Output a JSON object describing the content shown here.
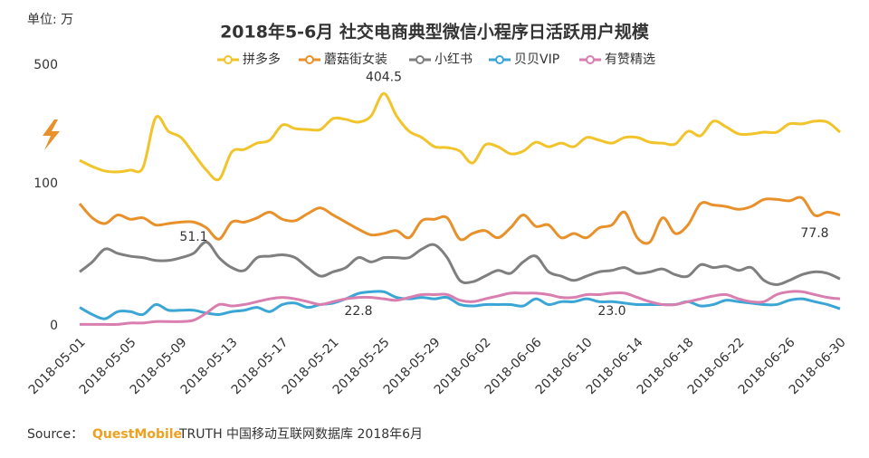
{
  "chart_data": {
    "type": "line",
    "title": "2018年5-6月 社交电商典型微信小程序日活跃用户规模",
    "unit_label": "单位: 万",
    "categories": [
      "2018-05-01",
      null,
      null,
      null,
      "2018-05-05",
      null,
      null,
      null,
      "2018-05-09",
      null,
      null,
      null,
      "2018-05-13",
      null,
      null,
      null,
      "2018-05-17",
      null,
      null,
      null,
      "2018-05-21",
      null,
      null,
      null,
      "2018-05-25",
      null,
      null,
      null,
      "2018-05-29",
      null,
      null,
      null,
      "2018-06-02",
      null,
      null,
      null,
      "2018-06-06",
      null,
      null,
      null,
      "2018-06-10",
      null,
      null,
      null,
      "2018-06-14",
      null,
      null,
      null,
      "2018-06-18",
      null,
      null,
      null,
      "2018-06-22",
      null,
      null,
      null,
      "2018-06-26",
      null,
      null,
      null,
      "2018-06-30"
    ],
    "ylim": [
      0,
      500
    ],
    "yticks": [
      0,
      100,
      500
    ],
    "grid": false,
    "legend": "top",
    "series": [
      {
        "name": "拼多多",
        "color": "#f2c42c",
        "values": [
          179,
          158,
          143,
          140,
          146,
          155,
          323,
          277,
          256,
          201,
          146,
          115,
          207,
          216,
          237,
          247,
          298,
          286,
          283,
          283,
          320,
          317,
          308,
          329,
          404.5,
          329,
          277,
          256,
          225,
          222,
          210,
          170,
          231,
          225,
          201,
          210,
          240,
          225,
          237,
          225,
          256,
          247,
          237,
          256,
          256,
          240,
          237,
          234,
          277,
          262,
          311,
          292,
          268,
          268,
          274,
          274,
          302,
          302,
          311,
          308,
          274
        ],
        "value_labels": [
          null,
          null,
          null,
          null,
          null,
          null,
          null,
          null,
          null,
          null,
          null,
          null,
          null,
          null,
          null,
          null,
          null,
          null,
          null,
          null,
          null,
          null,
          null,
          null,
          "404.5",
          null,
          null,
          null,
          null,
          null,
          null,
          null,
          null,
          null,
          null,
          null,
          null,
          null,
          null,
          null,
          null,
          null,
          null,
          null,
          null,
          null,
          null,
          null,
          null,
          null,
          null,
          null,
          null,
          null,
          null,
          null,
          null,
          null,
          null,
          null,
          null
        ]
      },
      {
        "name": "蘑菇街女装",
        "color": "#e8902a",
        "values": [
          86,
          76,
          72,
          78,
          75,
          76,
          71,
          72,
          73,
          73,
          69,
          61,
          73,
          73,
          76,
          80,
          75,
          74,
          79,
          83,
          78,
          73,
          68,
          64,
          65,
          67,
          62,
          74,
          75,
          76,
          61,
          65,
          67,
          62,
          69,
          78,
          70,
          71,
          62,
          65,
          62,
          69,
          71,
          80,
          62,
          59,
          76,
          65,
          71,
          86,
          85,
          84,
          82,
          84,
          89,
          89,
          88,
          90,
          77.8,
          80,
          78
        ],
        "value_labels": [
          null,
          null,
          null,
          null,
          null,
          null,
          null,
          null,
          null,
          null,
          null,
          null,
          null,
          null,
          null,
          null,
          null,
          null,
          null,
          null,
          null,
          null,
          null,
          null,
          null,
          null,
          null,
          null,
          null,
          null,
          null,
          null,
          null,
          null,
          null,
          null,
          null,
          null,
          null,
          null,
          null,
          null,
          null,
          null,
          null,
          null,
          null,
          null,
          null,
          null,
          null,
          null,
          null,
          null,
          null,
          null,
          null,
          null,
          "77.8",
          null,
          null
        ]
      },
      {
        "name": "小红书",
        "color": "#7f7f7f",
        "values": [
          38,
          45,
          54,
          51,
          49,
          48,
          46,
          46,
          48,
          51.1,
          59,
          48,
          41,
          39,
          48,
          49,
          50,
          48,
          41,
          35,
          38,
          41,
          48,
          45,
          48,
          48,
          48,
          54,
          57,
          48,
          32,
          31,
          35,
          39,
          37,
          45,
          49,
          38,
          35,
          32,
          35,
          38,
          39,
          41,
          37,
          38,
          40,
          36,
          35,
          43,
          41,
          42,
          39,
          41,
          32,
          29,
          32,
          36,
          38,
          37,
          33
        ],
        "value_labels": [
          null,
          null,
          null,
          null,
          null,
          null,
          null,
          null,
          null,
          "51.1",
          null,
          null,
          null,
          null,
          null,
          null,
          null,
          null,
          null,
          null,
          null,
          null,
          null,
          null,
          null,
          null,
          null,
          null,
          null,
          null,
          null,
          null,
          null,
          null,
          null,
          null,
          null,
          null,
          null,
          null,
          null,
          null,
          null,
          null,
          null,
          null,
          null,
          null,
          null,
          null,
          null,
          null,
          null,
          null,
          null,
          null,
          null,
          null,
          null,
          null,
          null
        ]
      },
      {
        "name": "贝贝VIP",
        "color": "#3ba6d6",
        "values": [
          13,
          8,
          5,
          10,
          10,
          8,
          15,
          11,
          11,
          11,
          9,
          8,
          10,
          11,
          13,
          10,
          15,
          16,
          13,
          15,
          16,
          19,
          22.8,
          24,
          24,
          20,
          19,
          20,
          19,
          20,
          15,
          14,
          15,
          15,
          15,
          14,
          19,
          15,
          17,
          17,
          19,
          17,
          17,
          16,
          15,
          15,
          15,
          15,
          17,
          14,
          15,
          18,
          17,
          16,
          15,
          15,
          18,
          19,
          17,
          15,
          12
        ],
        "value_labels": [
          null,
          null,
          null,
          null,
          null,
          null,
          null,
          null,
          null,
          null,
          null,
          null,
          null,
          null,
          null,
          null,
          null,
          null,
          null,
          null,
          null,
          null,
          "22.8",
          null,
          null,
          null,
          null,
          null,
          null,
          null,
          null,
          null,
          null,
          null,
          null,
          null,
          null,
          null,
          null,
          null,
          null,
          null,
          null,
          null,
          null,
          null,
          null,
          null,
          null,
          null,
          null,
          null,
          null,
          null,
          null,
          null,
          null,
          null,
          null,
          null,
          null
        ]
      },
      {
        "name": "有赞精选",
        "color": "#d97fb0",
        "values": [
          1,
          1,
          1,
          1,
          2,
          2,
          3,
          3,
          3,
          4,
          9,
          15,
          14,
          15,
          17,
          19,
          20,
          19,
          17,
          15,
          17,
          19,
          20,
          20,
          19,
          18,
          20,
          22,
          22,
          22,
          18,
          17,
          19,
          21,
          23,
          23,
          23,
          22,
          20,
          20,
          22,
          22,
          23.0,
          23,
          20,
          17,
          15,
          15,
          17,
          19,
          21,
          22,
          19,
          17,
          17,
          22,
          24,
          24,
          22,
          20,
          19
        ],
        "value_labels": [
          null,
          null,
          null,
          null,
          null,
          null,
          null,
          null,
          null,
          null,
          null,
          null,
          null,
          null,
          null,
          null,
          null,
          null,
          null,
          null,
          null,
          null,
          null,
          null,
          null,
          null,
          null,
          null,
          null,
          null,
          null,
          null,
          null,
          null,
          null,
          null,
          null,
          null,
          null,
          null,
          null,
          null,
          "23.0",
          null,
          null,
          null,
          null,
          null,
          null,
          null,
          null,
          null,
          null,
          null,
          null,
          null,
          null,
          null,
          null,
          null,
          null
        ]
      }
    ],
    "source": {
      "prefix": "Source：",
      "brand": "QuestMobile",
      "text": "TRUTH 中国移动互联网数据库 2018年6月"
    }
  }
}
